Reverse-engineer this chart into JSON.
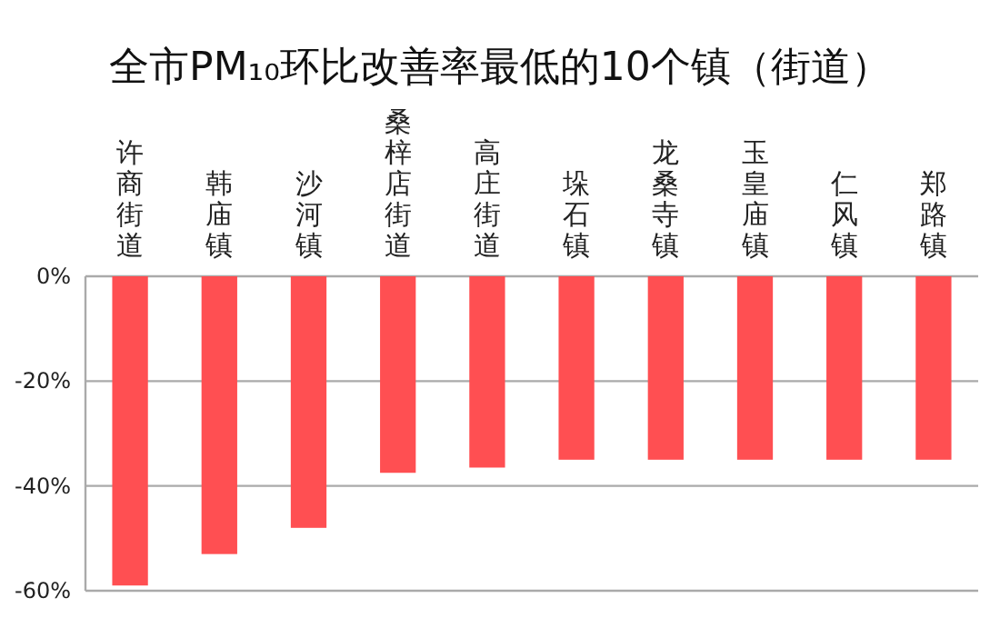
{
  "chart_data": {
    "type": "bar",
    "title": "全市PM₁₀环比改善率最低的10个镇（街道）",
    "categories": [
      "许商街道",
      "韩庙镇",
      "沙河镇",
      "桑梓店街道",
      "高庄街道",
      "垛石镇",
      "龙桑寺镇",
      "玉皇庙镇",
      "仁风镇",
      "郑路镇"
    ],
    "values": [
      -59,
      -53,
      -48,
      -37.5,
      -36.5,
      -35,
      -35,
      -35,
      -35,
      -35
    ],
    "color": "#ff4f52",
    "ylim": [
      -60,
      0
    ],
    "yticks": [
      {
        "value": -60,
        "label": "-60%"
      },
      {
        "value": -40,
        "label": "-40%"
      },
      {
        "value": -20,
        "label": "-20%"
      },
      {
        "value": 0,
        "label": "0%"
      }
    ],
    "grid": "y"
  }
}
